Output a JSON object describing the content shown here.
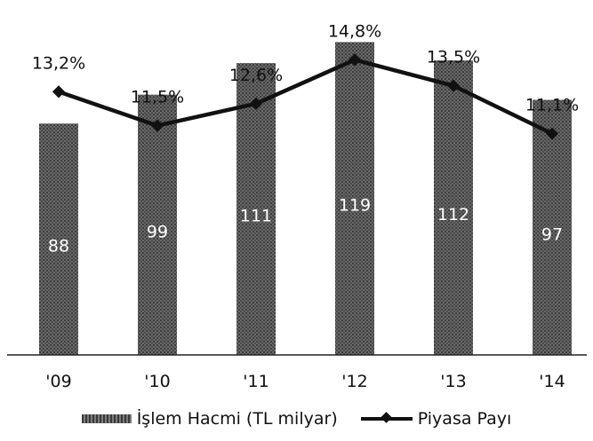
{
  "chart_data": {
    "type": "bar+line",
    "categories": [
      "'09",
      "'10",
      "'11",
      "'12",
      "'13",
      "'14"
    ],
    "series": [
      {
        "name": "İşlem Hacmi (TL milyar)",
        "type": "bar",
        "values": [
          88,
          99,
          111,
          119,
          112,
          97
        ],
        "labels": [
          "88",
          "99",
          "111",
          "119",
          "112",
          "97"
        ]
      },
      {
        "name": "Piyasa Payı",
        "type": "line",
        "unit": "%",
        "values": [
          13.2,
          11.5,
          12.6,
          14.8,
          13.5,
          11.1
        ],
        "labels": [
          "13,2%",
          "11,5%",
          "12,6%",
          "14,8%",
          "13,5%",
          "11,1%"
        ]
      }
    ],
    "bar_ylim": [
      0,
      135
    ],
    "line_ylim": [
      0,
      17.8
    ],
    "grid": false,
    "legend": "bottom",
    "colors": {
      "bar": "#5c5c5c",
      "line": "#111111"
    }
  },
  "legend": {
    "bar_label": "İşlem Hacmi (TL milyar)",
    "line_label": "Piyasa Payı"
  }
}
